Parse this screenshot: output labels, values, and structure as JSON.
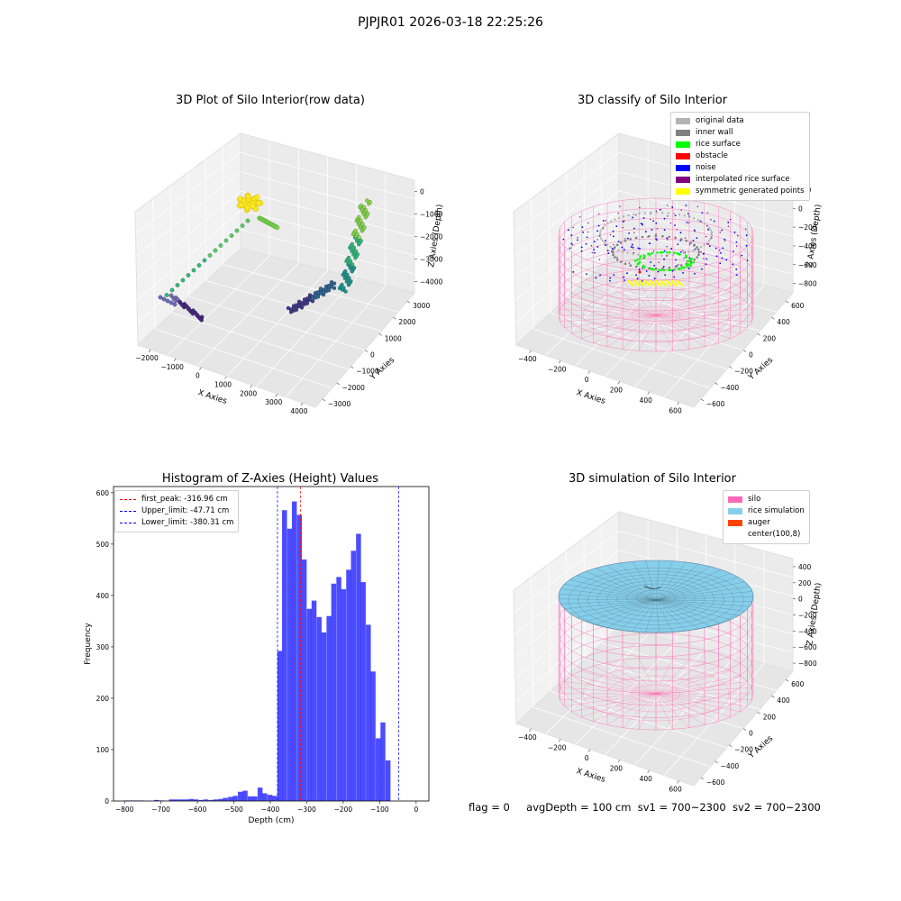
{
  "suptitle": "PJPJR01 2026-03-18 22:25:26",
  "footer": {
    "flag": "flag = 0",
    "avg_depth": "avgDepth = 100 cm",
    "sv1": "sv1 = 700~2300",
    "sv2": "sv2 = 700~2300"
  },
  "panels": {
    "raw": {
      "title": "3D Plot of Silo Interior(row data)",
      "xlabel": "X Axies",
      "ylabel": "Y Axies",
      "zlabel": "Z Axies (Depth)",
      "xticks": [
        "−2000",
        "−1000",
        "0",
        "1000",
        "2000",
        "3000",
        "4000"
      ],
      "yticks": [
        "−3000",
        "−2000",
        "−1000",
        "0",
        "1000",
        "2000",
        "3000"
      ],
      "zticks": [
        "0",
        "−1000",
        "−2000",
        "−3000",
        "−4000"
      ]
    },
    "classify": {
      "title": "3D classify of Silo Interior",
      "xlabel": "X Axies",
      "ylabel": "Y Axies",
      "zlabel": "Z Axies (Depth)",
      "xticks": [
        "−400",
        "−200",
        "0",
        "200",
        "400",
        "600"
      ],
      "yticks": [
        "−600",
        "−400",
        "−200",
        "0",
        "200",
        "400",
        "600"
      ],
      "zticks": [
        "200",
        "0",
        "−200",
        "−400",
        "−600",
        "−800"
      ],
      "legend": [
        {
          "label": "original data",
          "color": "#b3b3b3"
        },
        {
          "label": "inner wall",
          "color": "#808080"
        },
        {
          "label": "rice surface",
          "color": "#00ff00"
        },
        {
          "label": "obstacle",
          "color": "#ff0000"
        },
        {
          "label": "noise",
          "color": "#0000ff"
        },
        {
          "label": "interpolated rice surface",
          "color": "#800080"
        },
        {
          "label": "symmetric generated points",
          "color": "#ffff00"
        }
      ]
    },
    "simulation": {
      "title": "3D simulation of Silo Interior",
      "xlabel": "X Axies",
      "ylabel": "Y Axies",
      "zlabel": "Z Axies (Depth)",
      "xticks": [
        "−400",
        "−200",
        "0",
        "200",
        "400",
        "600"
      ],
      "yticks": [
        "−600",
        "−400",
        "−200",
        "0",
        "200",
        "400",
        "600"
      ],
      "zticks": [
        "400",
        "200",
        "0",
        "−200",
        "−400",
        "−600",
        "−800"
      ],
      "legend": [
        {
          "label": "silo",
          "color": "#ff69b4"
        },
        {
          "label": "rice simulation",
          "color": "#87ceeb"
        },
        {
          "label": "auger",
          "color": "#ff4500"
        },
        {
          "label": "center(100,8)",
          "color": "#ffffff"
        }
      ]
    }
  },
  "chart_data": {
    "type": "bar",
    "title": "Histogram of Z-Axies (Height) Values",
    "xlabel": "Depth (cm)",
    "ylabel": "Frequency",
    "xlim": [
      -830,
      35
    ],
    "ylim": [
      0,
      612
    ],
    "xticks": [
      -800,
      -700,
      -600,
      -500,
      -400,
      -300,
      -200,
      -100,
      0
    ],
    "yticks": [
      0,
      100,
      200,
      300,
      400,
      500,
      600
    ],
    "bar_color": "#0000ff",
    "bin_width": 13.5,
    "bins": [
      {
        "x": -793,
        "value": 1
      },
      {
        "x": -779,
        "value": 1
      },
      {
        "x": -766,
        "value": 1
      },
      {
        "x": -752,
        "value": 1
      },
      {
        "x": -739,
        "value": 0
      },
      {
        "x": -725,
        "value": 0
      },
      {
        "x": -712,
        "value": 2
      },
      {
        "x": -698,
        "value": 1
      },
      {
        "x": -685,
        "value": 0
      },
      {
        "x": -671,
        "value": 3
      },
      {
        "x": -658,
        "value": 3
      },
      {
        "x": -644,
        "value": 3
      },
      {
        "x": -631,
        "value": 3
      },
      {
        "x": -617,
        "value": 4
      },
      {
        "x": -604,
        "value": 3
      },
      {
        "x": -590,
        "value": 2
      },
      {
        "x": -577,
        "value": 3
      },
      {
        "x": -563,
        "value": 2
      },
      {
        "x": -550,
        "value": 3
      },
      {
        "x": -536,
        "value": 4
      },
      {
        "x": -523,
        "value": 6
      },
      {
        "x": -509,
        "value": 8
      },
      {
        "x": -496,
        "value": 10
      },
      {
        "x": -482,
        "value": 18
      },
      {
        "x": -469,
        "value": 20
      },
      {
        "x": -455,
        "value": 9
      },
      {
        "x": -442,
        "value": 9
      },
      {
        "x": -428,
        "value": 26
      },
      {
        "x": -415,
        "value": 15
      },
      {
        "x": -401,
        "value": 12
      },
      {
        "x": -388,
        "value": 10
      },
      {
        "x": -374,
        "value": 292
      },
      {
        "x": -361,
        "value": 566
      },
      {
        "x": -347,
        "value": 530
      },
      {
        "x": -334,
        "value": 583
      },
      {
        "x": -320,
        "value": 557
      },
      {
        "x": -307,
        "value": 470
      },
      {
        "x": -293,
        "value": 374
      },
      {
        "x": -280,
        "value": 390
      },
      {
        "x": -266,
        "value": 358
      },
      {
        "x": -253,
        "value": 328
      },
      {
        "x": -239,
        "value": 360
      },
      {
        "x": -226,
        "value": 423
      },
      {
        "x": -212,
        "value": 436
      },
      {
        "x": -199,
        "value": 412
      },
      {
        "x": -185,
        "value": 450
      },
      {
        "x": -172,
        "value": 487
      },
      {
        "x": -158,
        "value": 520
      },
      {
        "x": -145,
        "value": 426
      },
      {
        "x": -131,
        "value": 343
      },
      {
        "x": -118,
        "value": 252
      },
      {
        "x": -104,
        "value": 122
      },
      {
        "x": -91,
        "value": 153
      },
      {
        "x": -77,
        "value": 79
      }
    ],
    "vlines": [
      {
        "label": "first_peak: -316.96 cm",
        "x": -316.96,
        "color": "#ff0000"
      },
      {
        "label": "Upper_limit: -47.71 cm",
        "x": -47.71,
        "color": "#0000ff"
      },
      {
        "label": "Lower_limit: -380.31 cm",
        "x": -380.31,
        "color": "#0000ff"
      }
    ]
  }
}
